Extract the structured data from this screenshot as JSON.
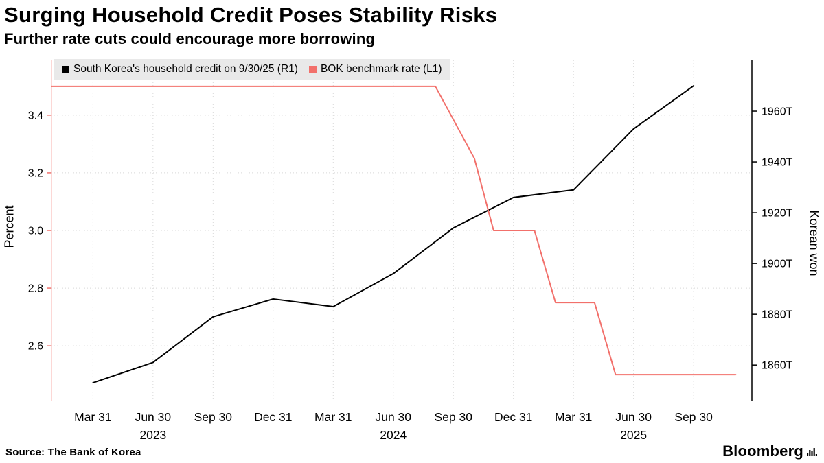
{
  "header": {
    "title": "Surging Household Credit Poses Stability Risks",
    "subtitle": "Further rate cuts could encourage more borrowing"
  },
  "legend": {
    "items": [
      {
        "label": "South Korea's household credit on 9/30/25 (R1)",
        "color": "#000000"
      },
      {
        "label": "BOK benchmark rate  (L1)",
        "color": "#f2706b"
      }
    ]
  },
  "chart_data": {
    "type": "line",
    "title": "Surging Household Credit Poses Stability Risks",
    "subtitle": "Further rate cuts could encourage more borrowing",
    "x_unit": "quarter-end dates (index 0 = Mar 31 2023, 1 step = 1 quarter)",
    "x_range": [
      -0.69,
      10.97
    ],
    "x_tick_values": [
      0,
      1,
      2,
      3,
      4,
      5,
      6,
      7,
      8,
      9,
      10
    ],
    "x_tick_labels": [
      "Mar 31",
      "Jun 30",
      "Sep 30",
      "Dec 31",
      "Mar 31",
      "Jun 30",
      "Sep 30",
      "Dec 31",
      "Mar 31",
      "Jun 30",
      "Sep 30"
    ],
    "year_labels": [
      {
        "label": "2023",
        "tick_index": 1
      },
      {
        "label": "2024",
        "tick_index": 5
      },
      {
        "label": "2025",
        "tick_index": 9
      }
    ],
    "left_axis": {
      "title": "Percent",
      "tick_values": [
        2.6,
        2.8,
        3.0,
        3.2,
        3.4
      ],
      "tick_labels": [
        "2.6",
        "2.8",
        "3.0",
        "3.2",
        "3.4"
      ],
      "range": [
        2.41,
        3.59
      ],
      "color": "#f2706b"
    },
    "right_axis": {
      "title": "Korean won",
      "tick_values": [
        1860,
        1880,
        1900,
        1920,
        1940,
        1960
      ],
      "tick_labels": [
        "1860T",
        "1880T",
        "1900T",
        "1920T",
        "1940T",
        "1960T"
      ],
      "range": [
        1846,
        1980
      ],
      "color": "#000000"
    },
    "grid": {
      "horizontal": true,
      "vertical": true,
      "color": "#d8d8d8",
      "style": "dotted"
    },
    "legend_position": "top-left inside plot",
    "series": [
      {
        "name": "South Korea's household credit on 9/30/25",
        "axis": "right",
        "color": "#000000",
        "x": [
          0,
          1,
          2,
          3,
          4,
          5,
          6,
          7,
          8,
          9,
          10
        ],
        "values": [
          1853,
          1861,
          1879,
          1886,
          1883,
          1896,
          1914,
          1926,
          1929,
          1953,
          1970
        ]
      },
      {
        "name": "BOK benchmark rate",
        "axis": "left",
        "color": "#f2706b",
        "x": [
          -0.69,
          5.7,
          6.35,
          6.67,
          7.35,
          7.7,
          8.35,
          8.7,
          10.7
        ],
        "values": [
          3.5,
          3.5,
          3.25,
          3.0,
          3.0,
          2.75,
          2.75,
          2.5,
          2.5
        ]
      }
    ]
  },
  "footer": {
    "source": "Source: The Bank of Korea",
    "brand": "Bloomberg"
  }
}
